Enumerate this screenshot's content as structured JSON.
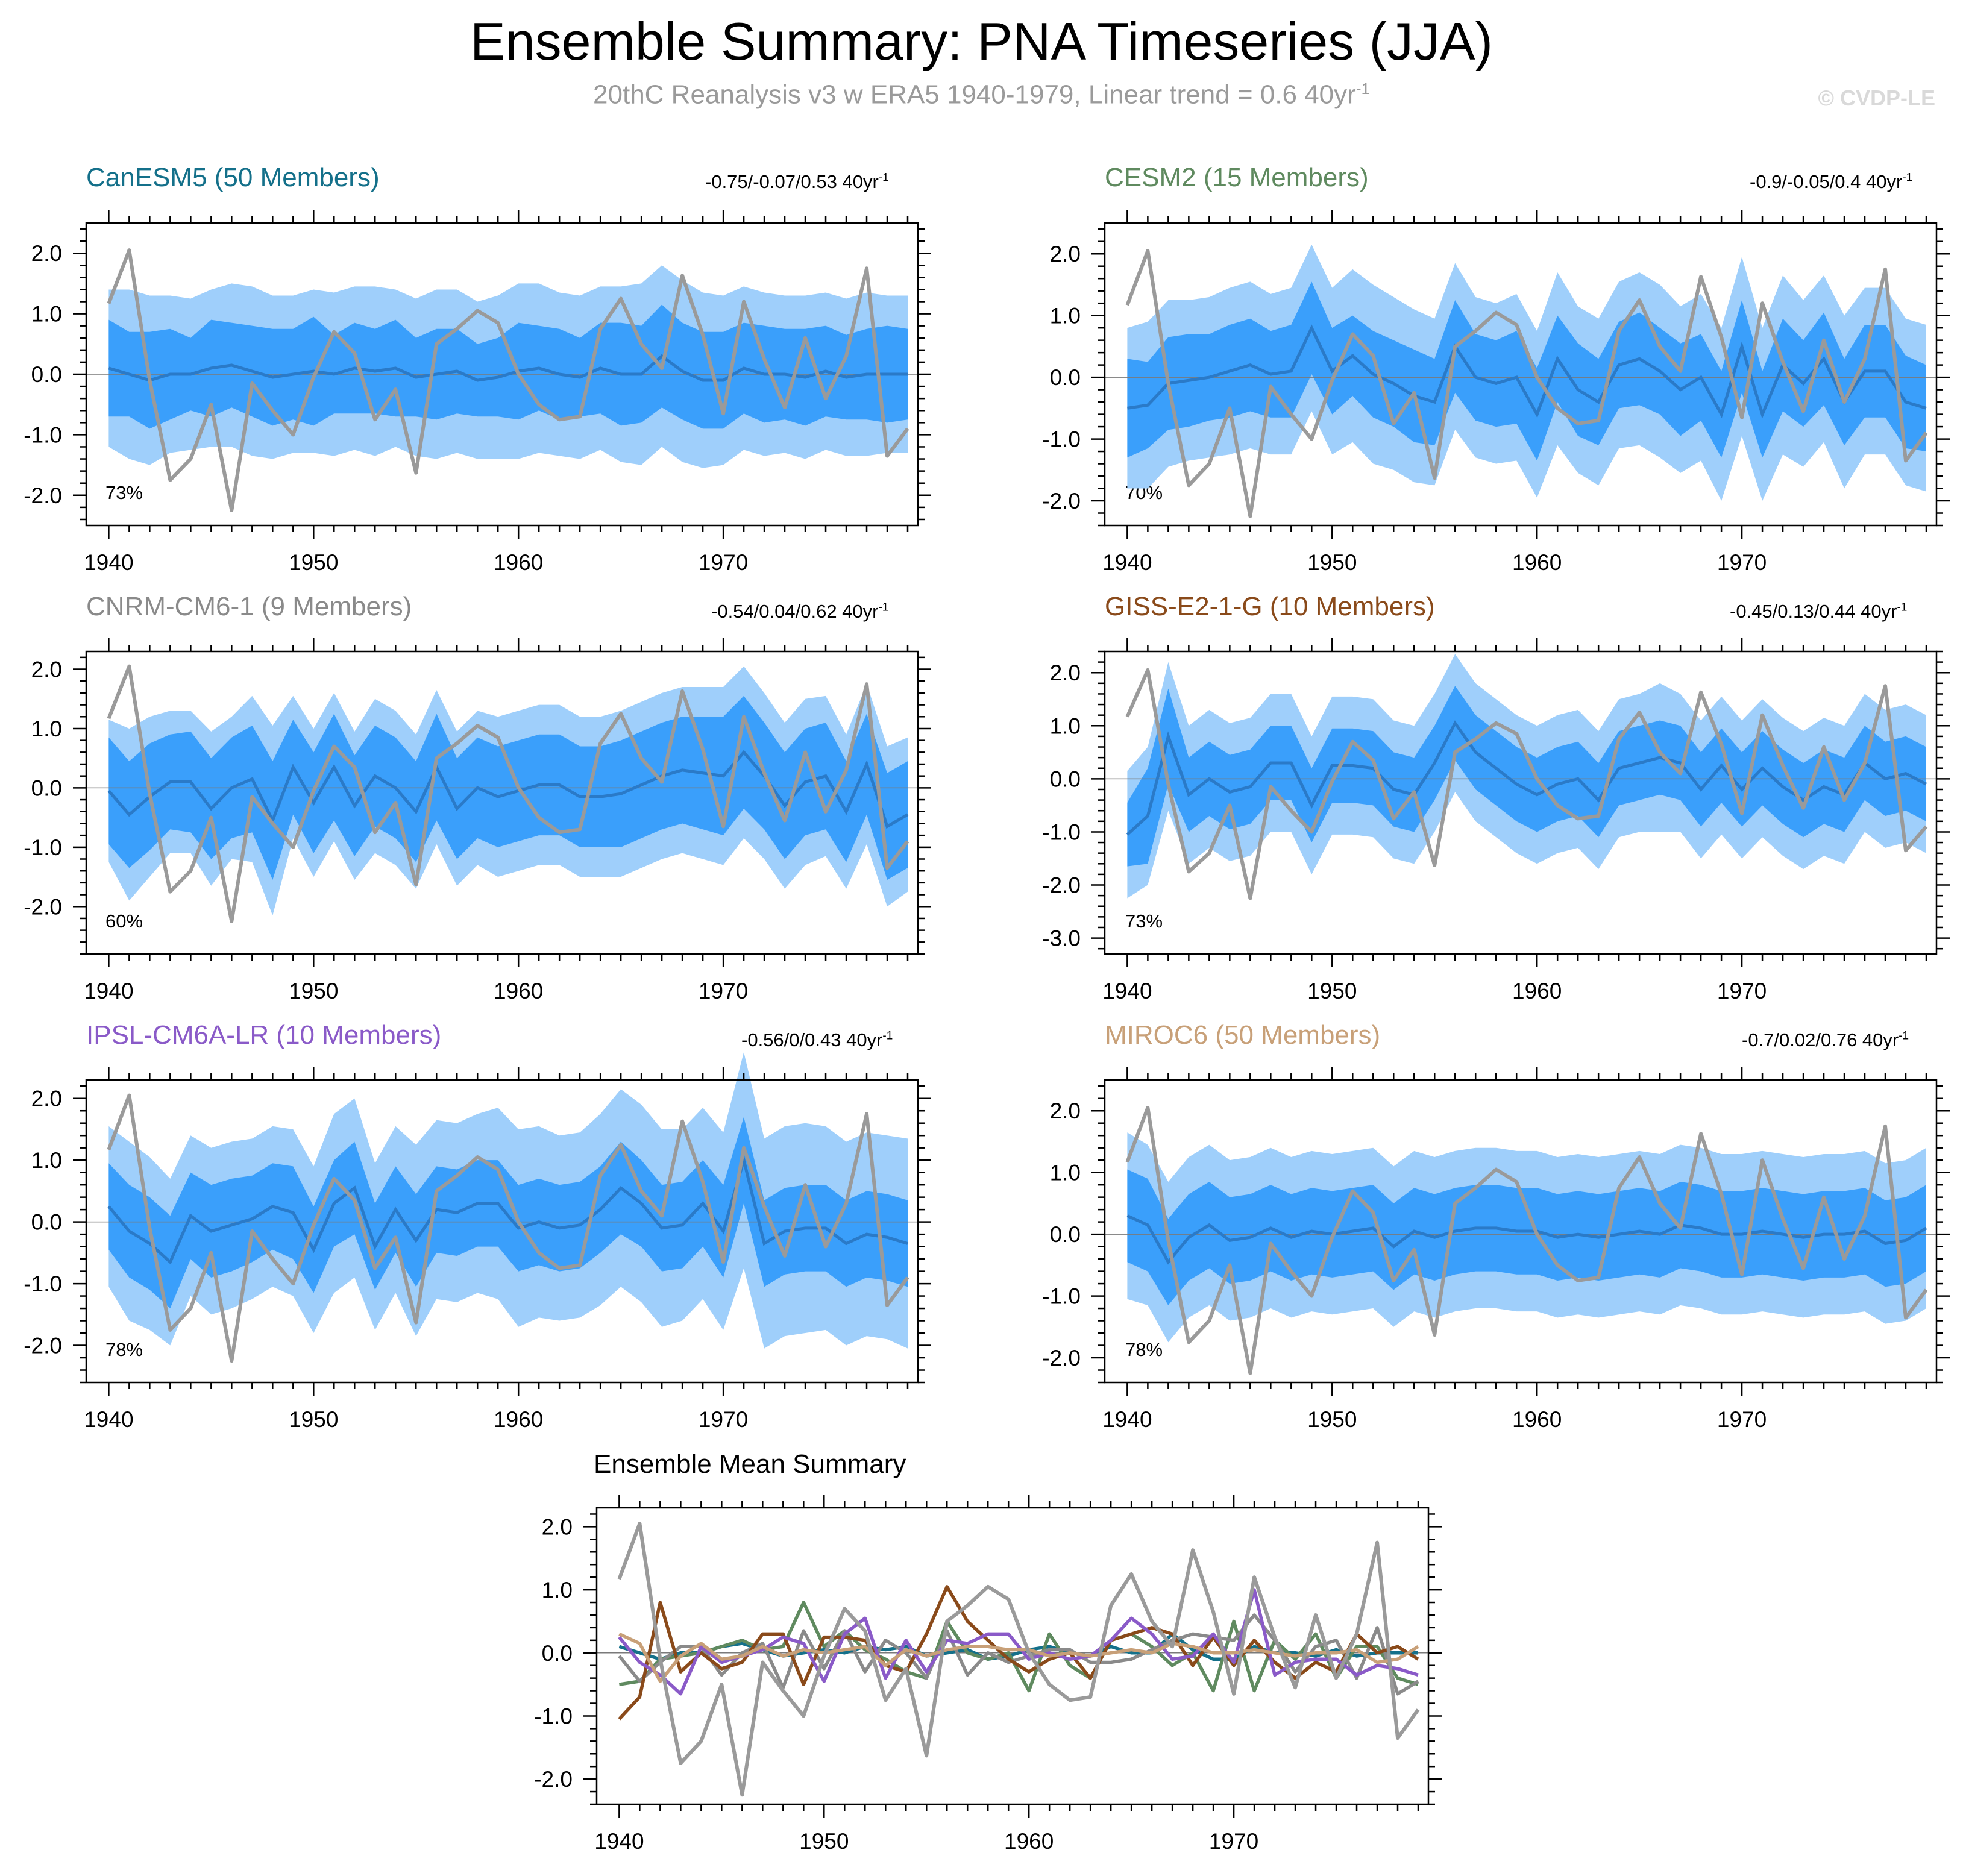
{
  "page": {
    "title": "Ensemble Summary: PNA Timeseries (JJA)",
    "subtitle_main": "20thC Reanalysis v3 w ERA5 1940-1979, Linear trend = 0.6 40yr",
    "subtitle_sup": "-1",
    "copyright": "© CVDP-LE"
  },
  "colors": {
    "band_outer": "#9fcffb",
    "band_inner": "#3a9ffb",
    "ens_mean": "#2a7ac8",
    "obs": "#9a9a9a",
    "zero_line": "#7a7a7a"
  },
  "chart_data": {
    "type": "line",
    "years": [
      1940,
      1941,
      1942,
      1943,
      1944,
      1945,
      1946,
      1947,
      1948,
      1949,
      1950,
      1951,
      1952,
      1953,
      1954,
      1955,
      1956,
      1957,
      1958,
      1959,
      1960,
      1961,
      1962,
      1963,
      1964,
      1965,
      1966,
      1967,
      1968,
      1969,
      1970,
      1971,
      1972,
      1973,
      1974,
      1975,
      1976,
      1977,
      1978,
      1979
    ],
    "observed": {
      "name": "20thC Reanalysis v3 w ERA5",
      "values": [
        1.17,
        2.05,
        -0.1,
        -1.75,
        -1.4,
        -0.5,
        -2.25,
        -0.15,
        -0.6,
        -1.0,
        -0.05,
        0.7,
        0.35,
        -0.75,
        -0.25,
        -1.63,
        0.5,
        0.75,
        1.05,
        0.85,
        0.0,
        -0.5,
        -0.75,
        -0.7,
        0.75,
        1.25,
        0.5,
        0.1,
        1.63,
        0.65,
        -0.65,
        1.2,
        0.25,
        -0.55,
        0.6,
        -0.4,
        0.3,
        1.75,
        -1.35,
        -0.9
      ]
    },
    "x_ticks": [
      "1940",
      "1950",
      "1960",
      "1970"
    ],
    "panels": [
      {
        "title": "CanESM5 (50 Members)",
        "title_color": "#14708a",
        "trend": "-0.75/-0.07/0.53 40yr",
        "trend_sup": "-1",
        "pct": "73%",
        "ylim": [
          -2.5,
          2.5
        ],
        "ytick_labels": [
          "2.0",
          "1.0",
          "0.0",
          "-1.0",
          "-2.0"
        ],
        "ytick_values": [
          2,
          1,
          0,
          -1,
          -2
        ],
        "mean": [
          0.1,
          0.0,
          -0.1,
          0.0,
          0.0,
          0.1,
          0.15,
          0.05,
          -0.05,
          0.0,
          0.05,
          0.0,
          0.1,
          0.05,
          0.1,
          -0.05,
          0.0,
          0.05,
          -0.1,
          -0.05,
          0.05,
          0.1,
          0.0,
          -0.05,
          0.1,
          0.0,
          0.0,
          0.3,
          0.05,
          -0.1,
          -0.1,
          0.1,
          0.0,
          0.0,
          -0.05,
          0.05,
          -0.05,
          0.0,
          0.0,
          0.0
        ],
        "inner": [
          0.8,
          0.7,
          0.8,
          0.75,
          0.6,
          0.8,
          0.7,
          0.75,
          0.8,
          0.75,
          0.9,
          0.65,
          0.75,
          0.7,
          0.8,
          0.65,
          0.75,
          0.7,
          0.6,
          0.65,
          0.8,
          0.7,
          0.75,
          0.65,
          0.75,
          0.85,
          0.8,
          0.85,
          0.8,
          0.8,
          0.8,
          0.75,
          0.8,
          0.75,
          0.8,
          0.75,
          0.7,
          0.75,
          0.8,
          0.75
        ],
        "outer": [
          1.3,
          1.4,
          1.4,
          1.3,
          1.25,
          1.3,
          1.35,
          1.4,
          1.35,
          1.3,
          1.35,
          1.35,
          1.35,
          1.4,
          1.3,
          1.3,
          1.4,
          1.35,
          1.3,
          1.35,
          1.45,
          1.4,
          1.35,
          1.35,
          1.35,
          1.45,
          1.5,
          1.5,
          1.5,
          1.45,
          1.4,
          1.35,
          1.35,
          1.3,
          1.35,
          1.3,
          1.3,
          1.35,
          1.3,
          1.3
        ]
      },
      {
        "title": "CESM2 (15 Members)",
        "title_color": "#5f8a5f",
        "trend": "-0.9/-0.05/0.4 40yr",
        "trend_sup": "-1",
        "pct": "70%",
        "ylim": [
          -2.4,
          2.5
        ],
        "ytick_labels": [
          "2.0",
          "1.0",
          "0.0",
          "-1.0",
          "-2.0"
        ],
        "ytick_values": [
          2,
          1,
          0,
          -1,
          -2
        ],
        "mean": [
          -0.5,
          -0.45,
          -0.1,
          -0.05,
          0.0,
          0.1,
          0.2,
          0.05,
          0.1,
          0.8,
          0.1,
          0.35,
          0.05,
          -0.1,
          -0.3,
          -0.4,
          0.5,
          0.0,
          -0.1,
          0.0,
          -0.6,
          0.3,
          -0.2,
          -0.4,
          0.2,
          0.3,
          0.1,
          -0.2,
          0.0,
          -0.6,
          0.5,
          -0.6,
          0.2,
          -0.1,
          0.3,
          -0.4,
          0.1,
          0.1,
          -0.4,
          -0.5
        ],
        "inner": [
          0.8,
          0.7,
          0.75,
          0.75,
          0.7,
          0.75,
          0.75,
          0.7,
          0.75,
          0.75,
          0.7,
          0.65,
          0.7,
          0.7,
          0.75,
          0.7,
          0.75,
          0.7,
          0.7,
          0.75,
          0.75,
          0.7,
          0.75,
          0.7,
          0.7,
          0.75,
          0.7,
          0.75,
          0.7,
          0.7,
          0.75,
          0.7,
          0.75,
          0.7,
          0.75,
          0.7,
          0.75,
          0.75,
          0.75,
          0.7
        ],
        "outer": [
          1.3,
          1.35,
          1.35,
          1.3,
          1.3,
          1.35,
          1.35,
          1.3,
          1.35,
          1.35,
          1.35,
          1.4,
          1.45,
          1.4,
          1.4,
          1.35,
          1.35,
          1.3,
          1.3,
          1.35,
          1.35,
          1.4,
          1.35,
          1.35,
          1.35,
          1.4,
          1.4,
          1.35,
          1.35,
          1.4,
          1.45,
          1.4,
          1.45,
          1.35,
          1.35,
          1.4,
          1.35,
          1.35,
          1.35,
          1.35
        ]
      },
      {
        "title": "CNRM-CM6-1 (9 Members)",
        "title_color": "#8a8a8a",
        "trend": "-0.54/0.04/0.62 40yr",
        "trend_sup": "-1",
        "pct": "60%",
        "ylim": [
          -2.8,
          2.3
        ],
        "ytick_labels": [
          "2.0",
          "1.0",
          "0.0",
          "-1.0",
          "-2.0"
        ],
        "ytick_values": [
          2,
          1,
          0,
          -1,
          -2
        ],
        "mean": [
          -0.05,
          -0.45,
          -0.15,
          0.1,
          0.1,
          -0.35,
          0.0,
          0.15,
          -0.55,
          0.35,
          -0.25,
          0.35,
          -0.3,
          0.2,
          0.0,
          -0.4,
          0.35,
          -0.35,
          0.0,
          -0.15,
          -0.05,
          0.05,
          0.05,
          -0.15,
          -0.15,
          -0.1,
          0.05,
          0.2,
          0.3,
          0.25,
          0.2,
          0.6,
          0.2,
          -0.3,
          0.1,
          0.2,
          -0.4,
          0.4,
          -0.65,
          -0.45
        ],
        "inner": [
          0.9,
          0.9,
          0.9,
          0.8,
          0.85,
          0.85,
          0.85,
          0.9,
          1.0,
          0.8,
          0.85,
          0.9,
          0.85,
          0.85,
          0.85,
          0.85,
          0.9,
          0.85,
          0.85,
          0.85,
          0.85,
          0.85,
          0.85,
          0.85,
          0.85,
          0.9,
          0.9,
          0.9,
          0.9,
          0.95,
          1.0,
          0.95,
          0.9,
          0.9,
          0.9,
          0.9,
          0.85,
          0.85,
          0.9,
          0.9
        ],
        "outer": [
          1.2,
          1.45,
          1.35,
          1.2,
          1.2,
          1.3,
          1.2,
          1.4,
          1.6,
          1.2,
          1.25,
          1.25,
          1.25,
          1.3,
          1.3,
          1.3,
          1.3,
          1.3,
          1.3,
          1.35,
          1.35,
          1.35,
          1.35,
          1.35,
          1.35,
          1.4,
          1.4,
          1.4,
          1.4,
          1.45,
          1.5,
          1.45,
          1.4,
          1.4,
          1.4,
          1.35,
          1.3,
          1.35,
          1.35,
          1.3
        ]
      },
      {
        "title": "GISS-E2-1-G (10 Members)",
        "title_color": "#8a4a1a",
        "trend": "-0.45/0.13/0.44 40yr",
        "trend_sup": "-1",
        "pct": "73%",
        "ylim": [
          -3.3,
          2.4
        ],
        "ytick_labels": [
          "2.0",
          "1.0",
          "0.0",
          "-1.0",
          "-2.0",
          "-3.0"
        ],
        "ytick_values": [
          2,
          1,
          0,
          -1,
          -2,
          -3
        ],
        "mean": [
          -1.05,
          -0.7,
          0.8,
          -0.3,
          0.0,
          -0.25,
          -0.15,
          0.3,
          0.3,
          -0.5,
          0.25,
          0.25,
          0.2,
          -0.2,
          -0.3,
          0.3,
          1.05,
          0.5,
          0.2,
          -0.1,
          -0.3,
          -0.1,
          0.0,
          -0.4,
          0.2,
          0.3,
          0.4,
          0.3,
          -0.2,
          0.25,
          -0.2,
          0.2,
          -0.15,
          -0.4,
          -0.15,
          -0.3,
          0.3,
          0.0,
          0.1,
          -0.1
        ],
        "inner": [
          0.6,
          0.9,
          0.9,
          0.7,
          0.7,
          0.7,
          0.7,
          0.7,
          0.7,
          0.7,
          0.7,
          0.7,
          0.7,
          0.7,
          0.7,
          0.7,
          0.7,
          0.7,
          0.7,
          0.7,
          0.7,
          0.7,
          0.7,
          0.7,
          0.7,
          0.7,
          0.7,
          0.7,
          0.7,
          0.7,
          0.7,
          0.7,
          0.7,
          0.7,
          0.7,
          0.7,
          0.7,
          0.7,
          0.7,
          0.7
        ],
        "outer": [
          1.2,
          1.3,
          1.4,
          1.3,
          1.3,
          1.3,
          1.3,
          1.3,
          1.3,
          1.3,
          1.3,
          1.3,
          1.3,
          1.3,
          1.3,
          1.3,
          1.3,
          1.3,
          1.3,
          1.3,
          1.3,
          1.3,
          1.3,
          1.3,
          1.3,
          1.3,
          1.4,
          1.3,
          1.3,
          1.3,
          1.3,
          1.3,
          1.3,
          1.3,
          1.3,
          1.3,
          1.3,
          1.3,
          1.3,
          1.3
        ]
      },
      {
        "title": "IPSL-CM6A-LR (10 Members)",
        "title_color": "#8a5ac8",
        "trend": "-0.56/0/0.43 40yr",
        "trend_sup": "-1",
        "pct": "78%",
        "ylim": [
          -2.6,
          2.3
        ],
        "ytick_labels": [
          "2.0",
          "1.0",
          "0.0",
          "-1.0",
          "-2.0"
        ],
        "ytick_values": [
          2,
          1,
          0,
          -1,
          -2
        ],
        "mean": [
          0.25,
          -0.15,
          -0.35,
          -0.65,
          0.1,
          -0.15,
          -0.05,
          0.05,
          0.25,
          0.15,
          -0.45,
          0.3,
          0.55,
          -0.4,
          0.2,
          -0.3,
          0.2,
          0.15,
          0.3,
          0.3,
          -0.1,
          0.0,
          -0.1,
          -0.05,
          0.2,
          0.55,
          0.3,
          -0.1,
          -0.05,
          0.3,
          -0.15,
          1.0,
          -0.35,
          -0.15,
          -0.1,
          -0.1,
          -0.35,
          -0.2,
          -0.25,
          -0.35
        ],
        "inner": [
          0.7,
          0.75,
          0.75,
          0.75,
          0.7,
          0.75,
          0.75,
          0.7,
          0.7,
          0.75,
          0.7,
          0.7,
          0.75,
          0.7,
          0.7,
          0.75,
          0.7,
          0.7,
          0.7,
          0.7,
          0.7,
          0.7,
          0.7,
          0.7,
          0.7,
          0.75,
          0.7,
          0.7,
          0.7,
          0.7,
          0.75,
          0.7,
          0.7,
          0.7,
          0.7,
          0.7,
          0.7,
          0.7,
          0.7,
          0.7
        ],
        "outer": [
          1.3,
          1.45,
          1.4,
          1.35,
          1.3,
          1.35,
          1.35,
          1.3,
          1.3,
          1.35,
          1.35,
          1.45,
          1.45,
          1.35,
          1.35,
          1.55,
          1.45,
          1.45,
          1.45,
          1.55,
          1.6,
          1.55,
          1.5,
          1.5,
          1.55,
          1.6,
          1.6,
          1.6,
          1.55,
          1.55,
          1.6,
          1.75,
          1.7,
          1.7,
          1.7,
          1.65,
          1.65,
          1.65,
          1.65,
          1.7
        ]
      },
      {
        "title": "MIROC6 (50 Members)",
        "title_color": "#c8a078",
        "trend": "-0.7/0.02/0.76 40yr",
        "trend_sup": "-1",
        "pct": "78%",
        "ylim": [
          -2.4,
          2.5
        ],
        "ytick_labels": [
          "2.0",
          "1.0",
          "0.0",
          "-1.0",
          "-2.0"
        ],
        "ytick_values": [
          2,
          1,
          0,
          -1,
          -2
        ],
        "mean": [
          0.3,
          0.15,
          -0.45,
          -0.05,
          0.15,
          -0.1,
          -0.05,
          0.1,
          -0.05,
          0.05,
          0.0,
          0.05,
          0.1,
          -0.2,
          0.05,
          -0.05,
          0.05,
          0.1,
          0.1,
          0.05,
          0.05,
          -0.05,
          0.0,
          -0.05,
          0.0,
          0.05,
          0.0,
          0.15,
          0.1,
          0.0,
          0.0,
          0.05,
          0.0,
          -0.05,
          0.0,
          0.0,
          0.05,
          -0.15,
          -0.1,
          0.1
        ],
        "inner": [
          0.75,
          0.75,
          0.7,
          0.7,
          0.7,
          0.7,
          0.7,
          0.7,
          0.7,
          0.7,
          0.7,
          0.7,
          0.7,
          0.7,
          0.7,
          0.7,
          0.7,
          0.7,
          0.7,
          0.7,
          0.7,
          0.7,
          0.7,
          0.7,
          0.7,
          0.7,
          0.7,
          0.7,
          0.7,
          0.7,
          0.7,
          0.7,
          0.7,
          0.7,
          0.7,
          0.7,
          0.7,
          0.7,
          0.7,
          0.7
        ],
        "outer": [
          1.35,
          1.3,
          1.3,
          1.3,
          1.3,
          1.3,
          1.3,
          1.3,
          1.3,
          1.3,
          1.3,
          1.3,
          1.3,
          1.3,
          1.3,
          1.3,
          1.3,
          1.3,
          1.3,
          1.3,
          1.3,
          1.3,
          1.3,
          1.3,
          1.3,
          1.3,
          1.3,
          1.3,
          1.3,
          1.3,
          1.3,
          1.3,
          1.3,
          1.3,
          1.3,
          1.3,
          1.3,
          1.3,
          1.3,
          1.3
        ]
      }
    ],
    "summary": {
      "title": "Ensemble Mean Summary",
      "ylim": [
        -2.4,
        2.3
      ],
      "ytick_labels": [
        "2.0",
        "1.0",
        "0.0",
        "-1.0",
        "-2.0"
      ],
      "ytick_values": [
        2,
        1,
        0,
        -1,
        -2
      ]
    }
  }
}
